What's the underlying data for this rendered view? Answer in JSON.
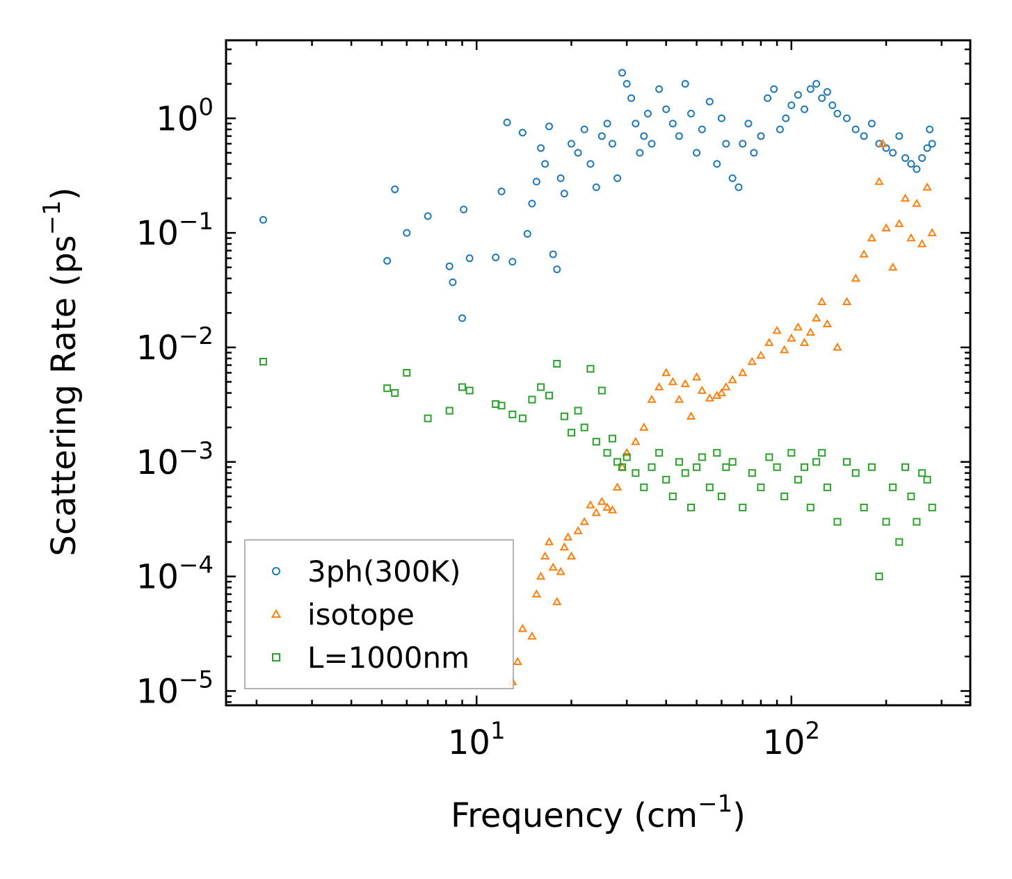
{
  "chart_data": {
    "type": "scatter",
    "title": "",
    "xlabel": "Frequency (cm",
    "xlabel_sup": "−1",
    "xlabel_tail": ")",
    "ylabel": "Scattering Rate (ps",
    "ylabel_sup": "−1",
    "ylabel_tail": ")",
    "xscale": "log",
    "yscale": "log",
    "xlim": [
      1.6,
      370
    ],
    "ylim": [
      7.5e-06,
      4.8
    ],
    "x_ticks": [
      {
        "value": 10,
        "base": "10",
        "exp": "1"
      },
      {
        "value": 100,
        "base": "10",
        "exp": "2"
      }
    ],
    "y_ticks": [
      {
        "value": 1,
        "base": "10",
        "exp": "0"
      },
      {
        "value": 0.1,
        "base": "10",
        "exp": "−1"
      },
      {
        "value": 0.01,
        "base": "10",
        "exp": "−2"
      },
      {
        "value": 0.001,
        "base": "10",
        "exp": "−3"
      },
      {
        "value": 0.0001,
        "base": "10",
        "exp": "−4"
      },
      {
        "value": 1e-05,
        "base": "10",
        "exp": "−5"
      }
    ],
    "legend_position": "lower-left",
    "series": [
      {
        "name": "3ph(300K)",
        "marker": "circle",
        "color": "#1f77b4",
        "x": [
          2.1,
          5.2,
          5.5,
          6.0,
          7.0,
          8.2,
          8.4,
          9.0,
          9.1,
          9.5,
          11.5,
          12.0,
          12.5,
          13.0,
          14.0,
          14.5,
          15.0,
          15.5,
          16.0,
          16.5,
          17.0,
          17.5,
          18.0,
          18.5,
          19.0,
          20.0,
          21.0,
          22.0,
          23.0,
          24.0,
          25.0,
          26.0,
          27.0,
          28.0,
          29.0,
          30.0,
          31.0,
          32.0,
          33.0,
          34.0,
          35.0,
          36.0,
          38.0,
          40.0,
          42.0,
          44.0,
          46.0,
          48.0,
          50.0,
          52.0,
          55.0,
          58.0,
          60.0,
          62.0,
          65.0,
          68.0,
          70.0,
          73.0,
          76.0,
          80.0,
          84.0,
          88.0,
          92.0,
          96.0,
          100.0,
          105.0,
          110.0,
          115.0,
          120.0,
          125.0,
          130.0,
          135.0,
          140.0,
          150.0,
          160.0,
          170.0,
          180.0,
          190.0,
          200.0,
          210.0,
          220.0,
          230.0,
          240.0,
          250.0,
          260.0,
          270.0,
          275.0,
          280.0
        ],
        "y": [
          0.13,
          0.057,
          0.24,
          0.1,
          0.14,
          0.051,
          0.037,
          0.018,
          0.16,
          0.06,
          0.061,
          0.23,
          0.92,
          0.056,
          0.75,
          0.098,
          0.18,
          0.28,
          0.55,
          0.4,
          0.85,
          0.065,
          0.048,
          0.3,
          0.22,
          0.6,
          0.5,
          0.8,
          0.4,
          0.25,
          0.7,
          0.9,
          0.6,
          0.3,
          2.5,
          2.0,
          1.5,
          0.9,
          0.5,
          0.7,
          1.1,
          0.6,
          1.8,
          1.2,
          0.9,
          0.7,
          2.0,
          1.1,
          0.5,
          0.8,
          1.4,
          0.4,
          1.0,
          0.6,
          0.3,
          0.25,
          0.6,
          0.9,
          0.5,
          0.7,
          1.5,
          1.8,
          0.8,
          1.0,
          1.3,
          1.6,
          1.2,
          1.8,
          2.0,
          1.5,
          1.7,
          1.3,
          1.1,
          1.0,
          0.8,
          0.7,
          0.9,
          0.6,
          0.55,
          0.5,
          0.7,
          0.45,
          0.4,
          0.36,
          0.45,
          0.55,
          0.8,
          0.6
        ]
      },
      {
        "name": "isotope",
        "marker": "triangle",
        "color": "#ff7f0e",
        "x": [
          13.0,
          13.5,
          14.0,
          15.0,
          15.5,
          16.0,
          16.5,
          17.0,
          17.5,
          18.0,
          18.5,
          19.0,
          19.5,
          20.0,
          21.0,
          22.0,
          23.0,
          24.0,
          25.0,
          26.0,
          27.0,
          28.0,
          29.0,
          30.0,
          32.0,
          34.0,
          36.0,
          38.0,
          40.0,
          42.0,
          44.0,
          46.0,
          48.0,
          50.0,
          52.0,
          55.0,
          58.0,
          60.0,
          62.0,
          65.0,
          70.0,
          75.0,
          80.0,
          85.0,
          90.0,
          95.0,
          100.0,
          105.0,
          110.0,
          115.0,
          120.0,
          125.0,
          130.0,
          140.0,
          150.0,
          160.0,
          170.0,
          180.0,
          190.0,
          195.0,
          200.0,
          210.0,
          220.0,
          230.0,
          240.0,
          250.0,
          260.0,
          270.0,
          280.0
        ],
        "y": [
          1.2e-05,
          1.8e-05,
          3.5e-05,
          3e-05,
          7e-05,
          0.0001,
          0.00015,
          0.0002,
          0.00012,
          6e-05,
          0.00011,
          0.00018,
          0.00022,
          0.00015,
          0.00025,
          0.0003,
          0.00042,
          0.00036,
          0.00045,
          0.0004,
          0.00038,
          0.0006,
          0.0009,
          0.0012,
          0.0015,
          0.002,
          0.0035,
          0.0045,
          0.006,
          0.005,
          0.0035,
          0.0048,
          0.0025,
          0.0055,
          0.0042,
          0.0036,
          0.0038,
          0.004,
          0.0045,
          0.0052,
          0.006,
          0.0075,
          0.0085,
          0.011,
          0.014,
          0.0095,
          0.012,
          0.015,
          0.011,
          0.0135,
          0.018,
          0.025,
          0.016,
          0.01,
          0.025,
          0.04,
          0.065,
          0.09,
          0.28,
          0.6,
          0.11,
          0.05,
          0.12,
          0.2,
          0.09,
          0.18,
          0.08,
          0.25,
          0.1
        ]
      },
      {
        "name": "L=1000nm",
        "marker": "square",
        "color": "#2ca02c",
        "x": [
          2.1,
          5.2,
          5.5,
          6.0,
          7.0,
          8.2,
          9.0,
          9.5,
          11.5,
          12.0,
          13.0,
          14.0,
          15.0,
          16.0,
          17.0,
          18.0,
          19.0,
          20.0,
          21.0,
          22.0,
          23.0,
          24.0,
          25.0,
          26.0,
          27.0,
          28.0,
          29.0,
          30.0,
          32.0,
          34.0,
          36.0,
          38.0,
          40.0,
          42.0,
          44.0,
          46.0,
          48.0,
          50.0,
          52.0,
          55.0,
          58.0,
          60.0,
          62.0,
          65.0,
          70.0,
          75.0,
          80.0,
          85.0,
          90.0,
          95.0,
          100.0,
          105.0,
          110.0,
          115.0,
          120.0,
          125.0,
          130.0,
          140.0,
          150.0,
          160.0,
          170.0,
          180.0,
          190.0,
          200.0,
          210.0,
          220.0,
          230.0,
          240.0,
          250.0,
          260.0,
          270.0,
          280.0
        ],
        "y": [
          0.0075,
          0.0044,
          0.004,
          0.006,
          0.0024,
          0.0028,
          0.0045,
          0.0042,
          0.0032,
          0.0031,
          0.0026,
          0.0024,
          0.0035,
          0.0045,
          0.0038,
          0.0072,
          0.0025,
          0.0018,
          0.0028,
          0.002,
          0.0065,
          0.0015,
          0.0042,
          0.0012,
          0.0016,
          0.001,
          0.0009,
          0.0011,
          0.0008,
          0.0006,
          0.0009,
          0.0012,
          0.0007,
          0.0005,
          0.001,
          0.0008,
          0.0004,
          0.0009,
          0.0011,
          0.0006,
          0.0012,
          0.0005,
          0.0009,
          0.001,
          0.0004,
          0.0008,
          0.0006,
          0.0011,
          0.0009,
          0.0005,
          0.0012,
          0.0007,
          0.0009,
          0.0004,
          0.001,
          0.0012,
          0.0006,
          0.0003,
          0.001,
          0.0008,
          0.0004,
          0.0009,
          0.0001,
          0.0003,
          0.0006,
          0.0002,
          0.0009,
          0.0005,
          0.0003,
          0.0008,
          0.0007,
          0.0004
        ]
      }
    ]
  }
}
